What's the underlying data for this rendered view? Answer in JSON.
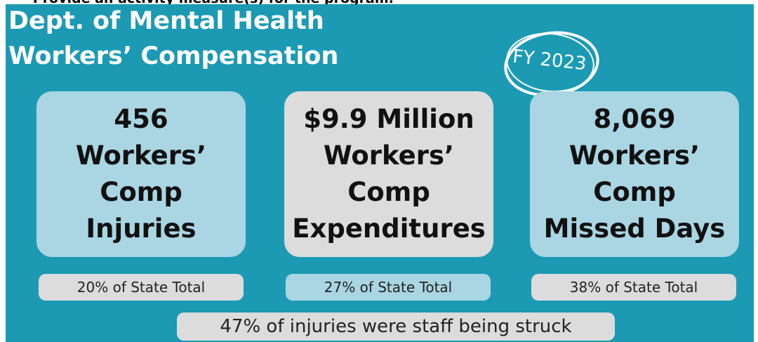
{
  "header": {
    "note": "Provide an activity measure(s) for the program.",
    "title": [
      "Dept. of Mental Health",
      "Workers’ Compensation"
    ],
    "badge": "FY 2023"
  },
  "cards": [
    {
      "lines": [
        "456",
        "Workers’",
        "Comp",
        "Injuries"
      ],
      "share": "20% of State Total"
    },
    {
      "lines": [
        "$9.9 Million",
        "Workers’",
        "Comp",
        "Expenditures"
      ],
      "share": "27% of State Total"
    },
    {
      "lines": [
        "8,069",
        "Workers’",
        "Comp",
        "Missed Days"
      ],
      "share": "38% of State Total"
    }
  ],
  "footnote": "47% of injuries were staff being struck"
}
